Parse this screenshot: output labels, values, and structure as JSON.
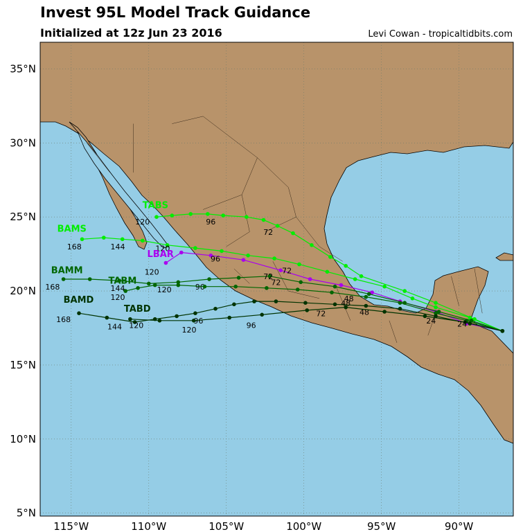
{
  "header": {
    "title": "Invest 95L Model Track Guidance",
    "subtitle": "Initialized at 12z Jun 23 2016",
    "credit": "Levi Cowan - tropicaltidbits.com"
  },
  "map": {
    "lon_range": [
      -117,
      -86.5
    ],
    "lat_range": [
      4.8,
      36.8
    ],
    "ocean_color": "#95cde6",
    "land_color": "#b8936a",
    "lat_ticks": [
      {
        "value": 35,
        "label": "35°N"
      },
      {
        "value": 30,
        "label": "30°N"
      },
      {
        "value": 25,
        "label": "25°N"
      },
      {
        "value": 20,
        "label": "20°N"
      },
      {
        "value": 15,
        "label": "15°N"
      },
      {
        "value": 10,
        "label": "10°N"
      },
      {
        "value": 5,
        "label": "5°N"
      }
    ],
    "lon_ticks": [
      {
        "value": -115,
        "label": "115°W"
      },
      {
        "value": -110,
        "label": "110°W"
      },
      {
        "value": -105,
        "label": "105°W"
      },
      {
        "value": -100,
        "label": "100°W"
      },
      {
        "value": -95,
        "label": "95°W"
      },
      {
        "value": -90,
        "label": "90°W"
      }
    ]
  },
  "tracks": [
    {
      "name": "TABS",
      "color": "#00ee00",
      "points": [
        [
          -87.2,
          17.3
        ],
        [
          -89.0,
          18.1
        ],
        [
          -91.5,
          19.2
        ],
        [
          -93.5,
          20.0
        ],
        [
          -96.3,
          21.0
        ],
        [
          -97.3,
          21.7
        ],
        [
          -98.3,
          22.3
        ],
        [
          -99.5,
          23.1
        ],
        [
          -100.7,
          23.9
        ],
        [
          -101.7,
          24.4
        ],
        [
          -102.6,
          24.8
        ],
        [
          -103.7,
          25.0
        ],
        [
          -105.2,
          25.1
        ],
        [
          -106.2,
          25.2
        ],
        [
          -107.3,
          25.2
        ],
        [
          -108.5,
          25.1
        ],
        [
          -109.5,
          25.0
        ]
      ],
      "labels": [
        {
          "text": "72",
          "lon": -102.3,
          "lat": 23.8
        },
        {
          "text": "96",
          "lon": -106.0,
          "lat": 24.5
        },
        {
          "text": "120",
          "lon": -110.4,
          "lat": 24.5
        }
      ],
      "name_pos": [
        -110.4,
        25.6
      ]
    },
    {
      "name": "BAMS",
      "color": "#00ee00",
      "points": [
        [
          -87.2,
          17.3
        ],
        [
          -89.3,
          18.2
        ],
        [
          -91.5,
          18.9
        ],
        [
          -93.0,
          19.5
        ],
        [
          -94.8,
          20.3
        ],
        [
          -96.7,
          20.8
        ],
        [
          -98.5,
          21.3
        ],
        [
          -100.3,
          21.8
        ],
        [
          -101.9,
          22.2
        ],
        [
          -103.6,
          22.4
        ],
        [
          -105.3,
          22.7
        ],
        [
          -107.0,
          22.9
        ],
        [
          -108.8,
          23.1
        ],
        [
          -110.4,
          23.4
        ],
        [
          -111.7,
          23.5
        ],
        [
          -112.9,
          23.6
        ],
        [
          -114.3,
          23.5
        ]
      ],
      "labels": [
        {
          "text": "48",
          "lon": -97.3,
          "lat": 19.0
        },
        {
          "text": "120",
          "lon": -109.1,
          "lat": 22.7
        },
        {
          "text": "144",
          "lon": -112.0,
          "lat": 22.8
        },
        {
          "text": "168",
          "lon": -114.8,
          "lat": 22.8
        }
      ],
      "name_pos": [
        -115.9,
        24.0
      ]
    },
    {
      "name": "LBAR",
      "color": "#aa00ee",
      "points": [
        [
          -87.2,
          17.3
        ],
        [
          -89.5,
          17.8
        ],
        [
          -91.5,
          18.6
        ],
        [
          -93.8,
          19.3
        ],
        [
          -95.6,
          19.9
        ],
        [
          -97.6,
          20.4
        ],
        [
          -99.6,
          20.8
        ],
        [
          -101.5,
          21.4
        ],
        [
          -103.9,
          22.1
        ],
        [
          -106.0,
          22.4
        ],
        [
          -107.9,
          22.6
        ],
        [
          -108.9,
          21.9
        ]
      ],
      "labels": [
        {
          "text": "72",
          "lon": -101.1,
          "lat": 21.2
        },
        {
          "text": "96",
          "lon": -105.7,
          "lat": 22.0
        },
        {
          "text": "120",
          "lon": -109.8,
          "lat": 21.1
        }
      ],
      "name_pos": [
        -110.1,
        22.3
      ]
    },
    {
      "name": "BAMM",
      "color": "#006600",
      "points": [
        [
          -87.2,
          17.3
        ],
        [
          -89.2,
          18.0
        ],
        [
          -91.3,
          18.6
        ],
        [
          -93.5,
          19.2
        ],
        [
          -95.8,
          19.8
        ],
        [
          -98.0,
          20.3
        ],
        [
          -100.2,
          20.6
        ],
        [
          -102.2,
          21.0
        ],
        [
          -104.2,
          20.9
        ],
        [
          -106.1,
          20.8
        ],
        [
          -108.1,
          20.6
        ],
        [
          -110.0,
          20.5
        ],
        [
          -111.9,
          20.7
        ],
        [
          -113.8,
          20.8
        ],
        [
          -115.5,
          20.8
        ]
      ],
      "labels": [
        {
          "text": "72",
          "lon": -102.3,
          "lat": 20.8
        },
        {
          "text": "96",
          "lon": -106.7,
          "lat": 20.1
        },
        {
          "text": "120",
          "lon": -109.0,
          "lat": 19.9
        },
        {
          "text": "144",
          "lon": -112.0,
          "lat": 20.0
        },
        {
          "text": "168",
          "lon": -116.2,
          "lat": 20.1
        }
      ],
      "name_pos": [
        -116.3,
        21.2
      ]
    },
    {
      "name": "TABM",
      "color": "#006600",
      "points": [
        [
          -87.2,
          17.3
        ],
        [
          -89.5,
          18.0
        ],
        [
          -91.5,
          18.5
        ],
        [
          -93.8,
          19.2
        ],
        [
          -96.0,
          19.6
        ],
        [
          -98.2,
          19.9
        ],
        [
          -100.4,
          20.1
        ],
        [
          -102.4,
          20.2
        ],
        [
          -104.4,
          20.3
        ],
        [
          -106.4,
          20.3
        ],
        [
          -108.1,
          20.4
        ],
        [
          -109.6,
          20.4
        ],
        [
          -110.7,
          20.2
        ],
        [
          -111.5,
          20.0
        ]
      ],
      "labels": [
        {
          "text": "48",
          "lon": -97.1,
          "lat": 19.3
        },
        {
          "text": "72",
          "lon": -101.8,
          "lat": 20.4
        },
        {
          "text": "120",
          "lon": -112.0,
          "lat": 19.4
        }
      ],
      "name_pos": [
        -112.6,
        20.5
      ]
    },
    {
      "name": "BAMD",
      "color": "#003300",
      "points": [
        [
          -87.2,
          17.3
        ],
        [
          -89.3,
          17.8
        ],
        [
          -91.5,
          18.3
        ],
        [
          -93.8,
          18.8
        ],
        [
          -96.0,
          19.0
        ],
        [
          -98.0,
          19.1
        ],
        [
          -99.9,
          19.2
        ],
        [
          -101.8,
          19.3
        ],
        [
          -103.2,
          19.3
        ],
        [
          -104.5,
          19.1
        ],
        [
          -105.7,
          18.8
        ],
        [
          -107.0,
          18.5
        ],
        [
          -108.2,
          18.3
        ],
        [
          -109.6,
          18.1
        ],
        [
          -110.9,
          17.9
        ],
        [
          -112.7,
          18.2
        ],
        [
          -114.5,
          18.5
        ]
      ],
      "labels": [
        {
          "text": "24",
          "lon": -91.8,
          "lat": 17.8
        },
        {
          "text": "48",
          "lon": -96.1,
          "lat": 18.4
        },
        {
          "text": "72",
          "lon": -98.9,
          "lat": 18.3
        },
        {
          "text": "96",
          "lon": -106.8,
          "lat": 17.8
        },
        {
          "text": "120",
          "lon": -110.8,
          "lat": 17.5
        },
        {
          "text": "168",
          "lon": -115.5,
          "lat": 17.9
        }
      ],
      "name_pos": [
        -115.5,
        19.2
      ]
    },
    {
      "name": "TABD",
      "color": "#003300",
      "points": [
        [
          -87.2,
          17.3
        ],
        [
          -89.6,
          17.9
        ],
        [
          -92.2,
          18.3
        ],
        [
          -94.8,
          18.6
        ],
        [
          -97.3,
          18.9
        ],
        [
          -99.8,
          18.7
        ],
        [
          -102.7,
          18.4
        ],
        [
          -104.8,
          18.2
        ],
        [
          -107.1,
          18.0
        ],
        [
          -109.3,
          18.0
        ],
        [
          -111.2,
          18.1
        ]
      ],
      "labels": [
        {
          "text": "24",
          "lon": -89.8,
          "lat": 17.6
        },
        {
          "text": "96",
          "lon": -103.4,
          "lat": 17.5
        },
        {
          "text": "120",
          "lon": -107.4,
          "lat": 17.2
        },
        {
          "text": "144",
          "lon": -112.2,
          "lat": 17.4
        }
      ],
      "name_pos": [
        -111.6,
        18.6
      ]
    }
  ]
}
